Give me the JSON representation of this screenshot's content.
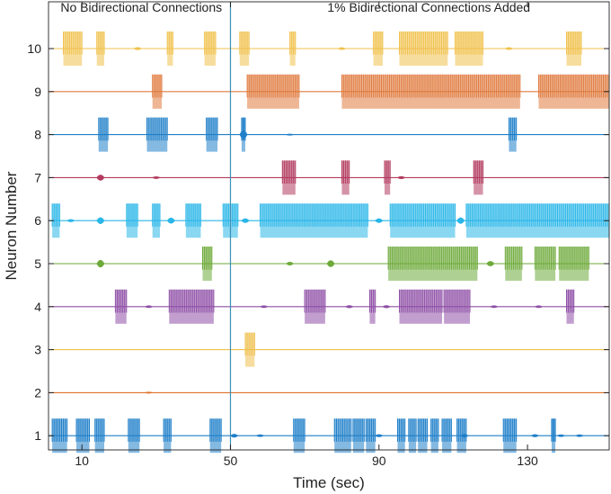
{
  "chart_data": {
    "type": "raster",
    "title": "",
    "xlabel": "Time (sec)",
    "ylabel": "Neuron Number",
    "xlim": [
      1,
      152
    ],
    "ylim": [
      0.6,
      10.8
    ],
    "x_ticks": [
      10,
      50,
      90,
      130
    ],
    "y_ticks": [
      1,
      2,
      3,
      4,
      5,
      6,
      7,
      8,
      9,
      10
    ],
    "marker_line": {
      "x": 50,
      "color": "#3a8fb7"
    },
    "annotations": [
      {
        "text": "No Bidirectional Connections",
        "region": "left",
        "range": [
          1,
          50
        ]
      },
      {
        "text": "1% Bidirectional Connections Added",
        "region": "right",
        "range": [
          50,
          152
        ]
      }
    ],
    "series": [
      {
        "name": "Neuron 1",
        "neuron": 1,
        "color": "#1f7fc9",
        "bursts": [
          [
            2,
            6
          ],
          [
            8.5,
            12
          ],
          [
            13.5,
            16
          ],
          [
            22.5,
            25.5
          ],
          [
            32,
            34
          ],
          [
            44.5,
            47.5
          ],
          [
            67,
            70
          ],
          [
            78,
            82.5
          ],
          [
            83,
            86
          ],
          [
            86.5,
            89
          ],
          [
            95,
            97
          ],
          [
            98,
            100
          ],
          [
            100.5,
            103
          ],
          [
            104,
            106
          ],
          [
            107,
            109.5
          ],
          [
            111,
            113.5
          ],
          [
            123.5,
            127
          ],
          [
            136.5,
            137.5
          ]
        ],
        "small": [
          [
            51,
            0.08
          ],
          [
            58,
            0.05
          ],
          [
            90,
            0.06
          ],
          [
            113,
            0.08
          ],
          [
            132,
            0.06
          ],
          [
            139,
            0.05
          ],
          [
            144,
            0.05
          ]
        ]
      },
      {
        "name": "Neuron 2",
        "neuron": 2,
        "color": "#e0702b",
        "bursts": [],
        "small": [
          [
            28,
            0.03
          ]
        ]
      },
      {
        "name": "Neuron 3",
        "neuron": 3,
        "color": "#eec04e",
        "bursts": [
          [
            54,
            56.5
          ]
        ],
        "small": []
      },
      {
        "name": "Neuron 4",
        "neuron": 4,
        "color": "#8e4fa6",
        "bursts": [
          [
            19,
            22
          ],
          [
            33.5,
            45.5
          ],
          [
            70,
            75.5
          ],
          [
            87.5,
            89
          ],
          [
            95.5,
            107
          ],
          [
            107.5,
            114.5
          ],
          [
            140.5,
            142.5
          ]
        ],
        "small": [
          [
            28,
            0.05
          ],
          [
            59,
            0.05
          ],
          [
            82,
            0.06
          ],
          [
            92,
            0.06
          ],
          [
            121,
            0.05
          ],
          [
            133,
            0.05
          ]
        ]
      },
      {
        "name": "Neuron 5",
        "neuron": 5,
        "color": "#6eaa3a",
        "bursts": [
          [
            42.5,
            45
          ],
          [
            92.5,
            116.5
          ],
          [
            124,
            128.5
          ],
          [
            132,
            137.5
          ],
          [
            138.5,
            146.5
          ]
        ],
        "small": [
          [
            15,
            0.18
          ],
          [
            66,
            0.08
          ],
          [
            77,
            0.16
          ],
          [
            120,
            0.12
          ]
        ]
      },
      {
        "name": "Neuron 6",
        "neuron": 6,
        "color": "#29b6e8",
        "bursts": [
          [
            2,
            4
          ],
          [
            22,
            25
          ],
          [
            29,
            31
          ],
          [
            38,
            42
          ],
          [
            48,
            52
          ],
          [
            58,
            87
          ],
          [
            93,
            110.5
          ],
          [
            113.5,
            152
          ]
        ],
        "small": [
          [
            7,
            0.06
          ],
          [
            15,
            0.16
          ],
          [
            34,
            0.14
          ],
          [
            54,
            0.1
          ],
          [
            90,
            0.1
          ],
          [
            112,
            0.15
          ]
        ]
      },
      {
        "name": "Neuron 7",
        "neuron": 7,
        "color": "#b23a5e",
        "bursts": [
          [
            64,
            67.5
          ],
          [
            80,
            82
          ],
          [
            91.5,
            93
          ],
          [
            115.5,
            118
          ]
        ],
        "small": [
          [
            15,
            0.14
          ],
          [
            30,
            0.05
          ],
          [
            96,
            0.06
          ]
        ]
      },
      {
        "name": "Neuron 8",
        "neuron": 8,
        "color": "#1f7fc9",
        "bursts": [
          [
            14.5,
            17
          ],
          [
            27.5,
            33
          ],
          [
            43.5,
            46.5
          ],
          [
            53,
            54
          ],
          [
            125,
            127
          ]
        ],
        "small": [
          [
            53.5,
            0.2
          ],
          [
            66,
            0.03
          ]
        ]
      },
      {
        "name": "Neuron 9",
        "neuron": 9,
        "color": "#e07a3e",
        "bursts": [
          [
            29,
            31.5
          ],
          [
            54.5,
            68.5
          ],
          [
            80,
            128
          ],
          [
            133,
            152
          ]
        ],
        "small": []
      },
      {
        "name": "Neuron 10",
        "neuron": 10,
        "color": "#f0c14d",
        "bursts": [
          [
            5,
            10
          ],
          [
            14,
            16
          ],
          [
            33,
            34.5
          ],
          [
            43,
            46
          ],
          [
            52.5,
            55
          ],
          [
            66,
            67.5
          ],
          [
            88.5,
            91
          ],
          [
            95.5,
            108.5
          ],
          [
            110.5,
            118
          ],
          [
            140.5,
            144.5
          ]
        ],
        "small": [
          [
            25,
            0.06
          ],
          [
            80,
            0.05
          ],
          [
            125,
            0.05
          ]
        ]
      }
    ]
  }
}
